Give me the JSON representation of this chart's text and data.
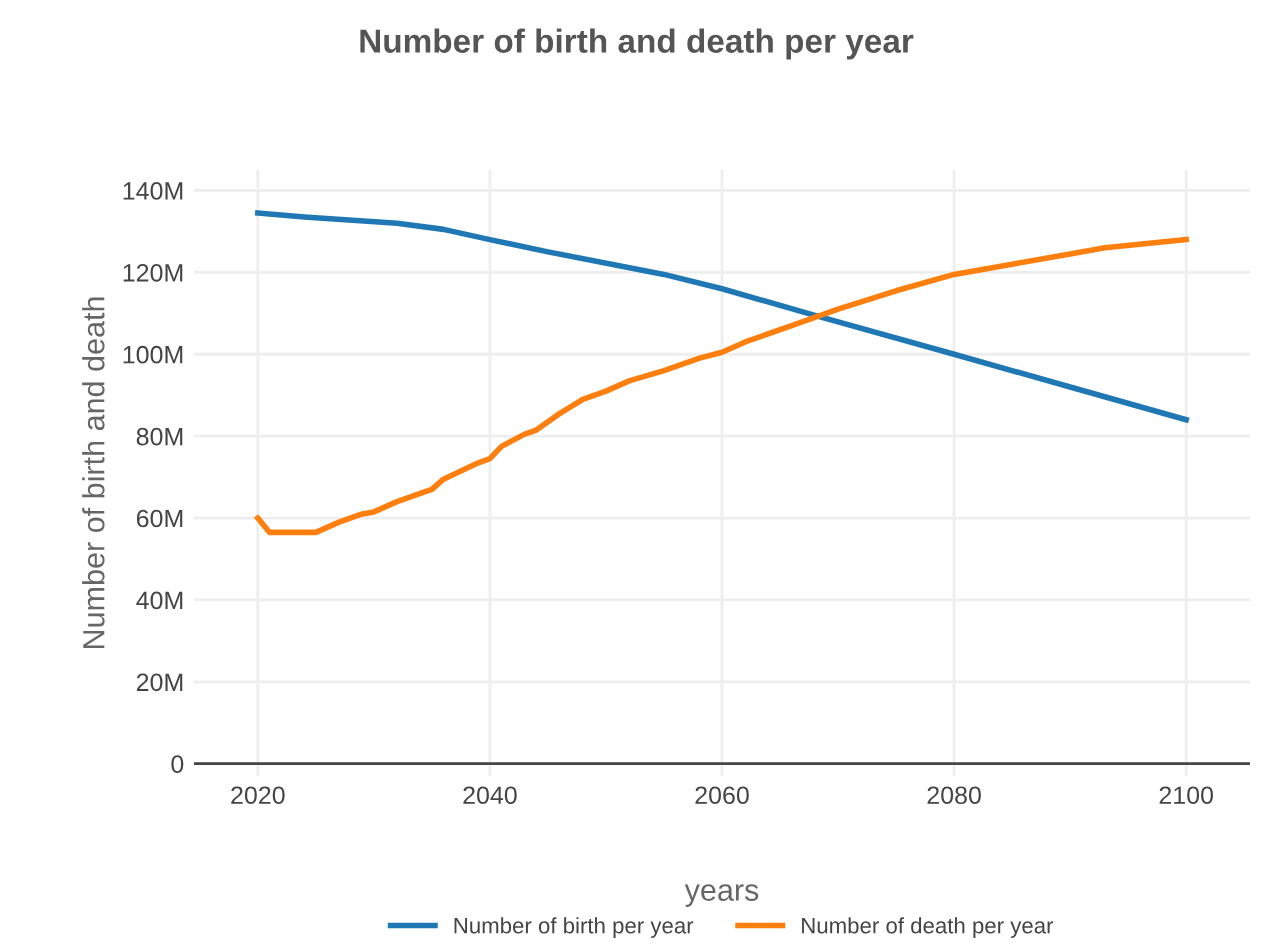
{
  "chart_data": {
    "type": "line",
    "title": "Number of birth and death per year",
    "xlabel": "years",
    "ylabel": "Number of birth and death",
    "xlim": [
      2014.5,
      2105.5
    ],
    "xticks": [
      2020,
      2040,
      2060,
      2080,
      2100
    ],
    "ylim": [
      -3,
      145
    ],
    "yticks": [
      {
        "value": 0,
        "label": "0"
      },
      {
        "value": 20,
        "label": "20M"
      },
      {
        "value": 40,
        "label": "40M"
      },
      {
        "value": 60,
        "label": "60M"
      },
      {
        "value": 80,
        "label": "80M"
      },
      {
        "value": 100,
        "label": "100M"
      },
      {
        "value": 120,
        "label": "120M"
      },
      {
        "value": 140,
        "label": "140M"
      }
    ],
    "grid": true,
    "legend": "bottom",
    "marker": "none",
    "line_style": "solid",
    "series": [
      {
        "name": "Number of birth per year",
        "color": "#1f77b4",
        "x": [
          2020,
          2024,
          2032,
          2036,
          2040,
          2045,
          2055,
          2060,
          2068,
          2080,
          2090,
          2100
        ],
        "values": [
          134.5,
          133.5,
          132,
          130.5,
          128,
          125,
          119.5,
          116,
          109.5,
          100,
          92,
          84
        ]
      },
      {
        "name": "Number of death per year",
        "color": "#ff7f0e",
        "x": [
          2020,
          2021,
          2025,
          2027,
          2029,
          2030,
          2032,
          2034,
          2035,
          2036,
          2039,
          2040,
          2041,
          2043,
          2044,
          2046,
          2048,
          2050,
          2052,
          2055,
          2058,
          2060,
          2062,
          2066,
          2070,
          2075,
          2080,
          2085,
          2090,
          2093,
          2100
        ],
        "values": [
          60,
          56.5,
          56.5,
          59,
          61,
          61.5,
          64,
          66,
          67,
          69.5,
          73.5,
          74.5,
          77.5,
          80.5,
          81.5,
          85.5,
          89,
          91,
          93.5,
          96,
          99,
          100.5,
          103,
          107,
          111,
          115.5,
          119.5,
          122,
          124.5,
          126,
          128
        ]
      }
    ]
  }
}
